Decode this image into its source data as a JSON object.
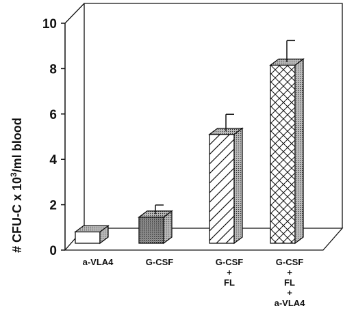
{
  "chart_data": {
    "type": "bar",
    "ylabel": "# CFU-C x 10",
    "ylabel_sup": "3",
    "ylabel_suffix": "/ml blood",
    "ylim": [
      0,
      10
    ],
    "yticks": [
      "0",
      "2",
      "4",
      "6",
      "8",
      "10"
    ],
    "categories": [
      [
        "a-VLA4"
      ],
      [
        "G-CSF"
      ],
      [
        "G-CSF",
        "+",
        "FL"
      ],
      [
        "G-CSF",
        "+",
        "FL",
        "+",
        "a-VLA4"
      ]
    ],
    "values": [
      0.5,
      1.15,
      4.8,
      7.85
    ],
    "errors": [
      0.0,
      0.4,
      0.75,
      0.95
    ],
    "patterns": [
      "white",
      "dots",
      "diagonal",
      "crosshatch"
    ],
    "grid": false
  }
}
